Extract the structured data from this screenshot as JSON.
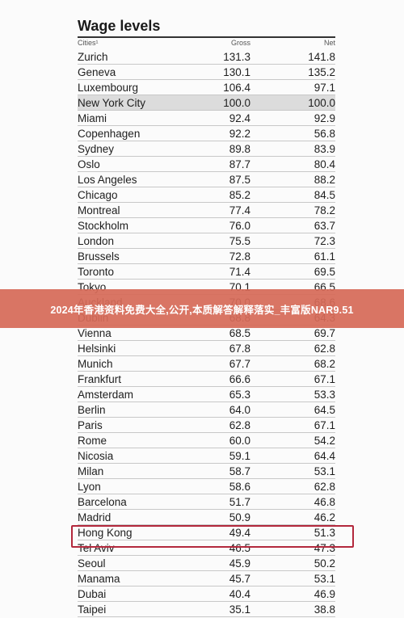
{
  "title": "Wage levels",
  "headers": {
    "city": "Cities¹",
    "gross": "Gross",
    "net": "Net"
  },
  "rows": [
    {
      "city": "Zurich",
      "gross": "131.3",
      "net": "141.8"
    },
    {
      "city": "Geneva",
      "gross": "130.1",
      "net": "135.2"
    },
    {
      "city": "Luxembourg",
      "gross": "106.4",
      "net": "97.1"
    },
    {
      "city": "New York City",
      "gross": "100.0",
      "net": "100.0",
      "highlight": true
    },
    {
      "city": "Miami",
      "gross": "92.4",
      "net": "92.9"
    },
    {
      "city": "Copenhagen",
      "gross": "92.2",
      "net": "56.8"
    },
    {
      "city": "Sydney",
      "gross": "89.8",
      "net": "83.9"
    },
    {
      "city": "Oslo",
      "gross": "87.7",
      "net": "80.4"
    },
    {
      "city": "Los Angeles",
      "gross": "87.5",
      "net": "88.2"
    },
    {
      "city": "Chicago",
      "gross": "85.2",
      "net": "84.5"
    },
    {
      "city": "Montreal",
      "gross": "77.4",
      "net": "78.2"
    },
    {
      "city": "Stockholm",
      "gross": "76.0",
      "net": "63.7"
    },
    {
      "city": "London",
      "gross": "75.5",
      "net": "72.3"
    },
    {
      "city": "Brussels",
      "gross": "72.8",
      "net": "61.1"
    },
    {
      "city": "Toronto",
      "gross": "71.4",
      "net": "69.5"
    },
    {
      "city": "Tokyo",
      "gross": "70.1",
      "net": "66.5"
    },
    {
      "city": "Auckland",
      "gross": "70.0",
      "net": "68.6"
    },
    {
      "city": "Dublin",
      "gross": "68.8",
      "net": "64.3"
    },
    {
      "city": "Vienna",
      "gross": "68.5",
      "net": "69.7"
    },
    {
      "city": "Helsinki",
      "gross": "67.8",
      "net": "62.8"
    },
    {
      "city": "Munich",
      "gross": "67.7",
      "net": "68.2"
    },
    {
      "city": "Frankfurt",
      "gross": "66.6",
      "net": "67.1"
    },
    {
      "city": "Amsterdam",
      "gross": "65.3",
      "net": "53.3"
    },
    {
      "city": "Berlin",
      "gross": "64.0",
      "net": "64.5"
    },
    {
      "city": "Paris",
      "gross": "62.8",
      "net": "67.1"
    },
    {
      "city": "Rome",
      "gross": "60.0",
      "net": "54.2"
    },
    {
      "city": "Nicosia",
      "gross": "59.1",
      "net": "64.4"
    },
    {
      "city": "Milan",
      "gross": "58.7",
      "net": "53.1"
    },
    {
      "city": "Lyon",
      "gross": "58.6",
      "net": "62.8"
    },
    {
      "city": "Barcelona",
      "gross": "51.7",
      "net": "46.8"
    },
    {
      "city": "Madrid",
      "gross": "50.9",
      "net": "46.2"
    },
    {
      "city": "Hong Kong",
      "gross": "49.4",
      "net": "51.3"
    },
    {
      "city": "Tel Aviv",
      "gross": "46.5",
      "net": "47.3"
    },
    {
      "city": "Seoul",
      "gross": "45.9",
      "net": "50.2"
    },
    {
      "city": "Manama",
      "gross": "45.7",
      "net": "53.1"
    },
    {
      "city": "Dubai",
      "gross": "40.4",
      "net": "46.9"
    },
    {
      "city": "Taipei",
      "gross": "35.1",
      "net": "38.8"
    }
  ],
  "banner": "2024年香港资料免费大全,公开,本质解答解释落实_丰富版NAR9.51"
}
